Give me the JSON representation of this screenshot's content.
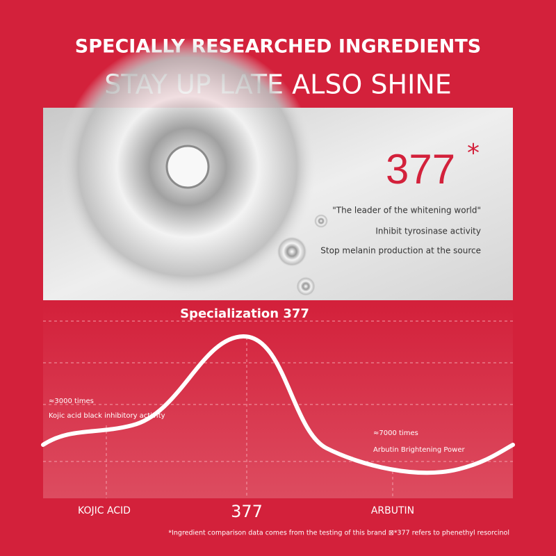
{
  "header": {
    "title": "SPECIALLY RESEARCHED INGREDIENTS",
    "subtitle": "STAY UP LATE ALSO SHINE"
  },
  "hero": {
    "number": "377",
    "mark": "*",
    "lines": [
      "\"The leader of the whitening world\"",
      "Inhibit tyrosinase activity",
      "Stop melanin production at the source"
    ]
  },
  "comparison": {
    "title": "Specialization 377",
    "notes": [
      {
        "ratio": "≈3000 times",
        "text": "Kojic acid black inhibitory activity"
      },
      {
        "ratio": "≈7000 times",
        "text": "Arbutin Brightening Power"
      }
    ],
    "labels": [
      "KOJIC ACID",
      "377",
      "ARBUTIN"
    ]
  },
  "footnote": "*Ingredient comparison data comes from the testing of this brand ⊠*377 refers to phenethyl resorcinol"
}
